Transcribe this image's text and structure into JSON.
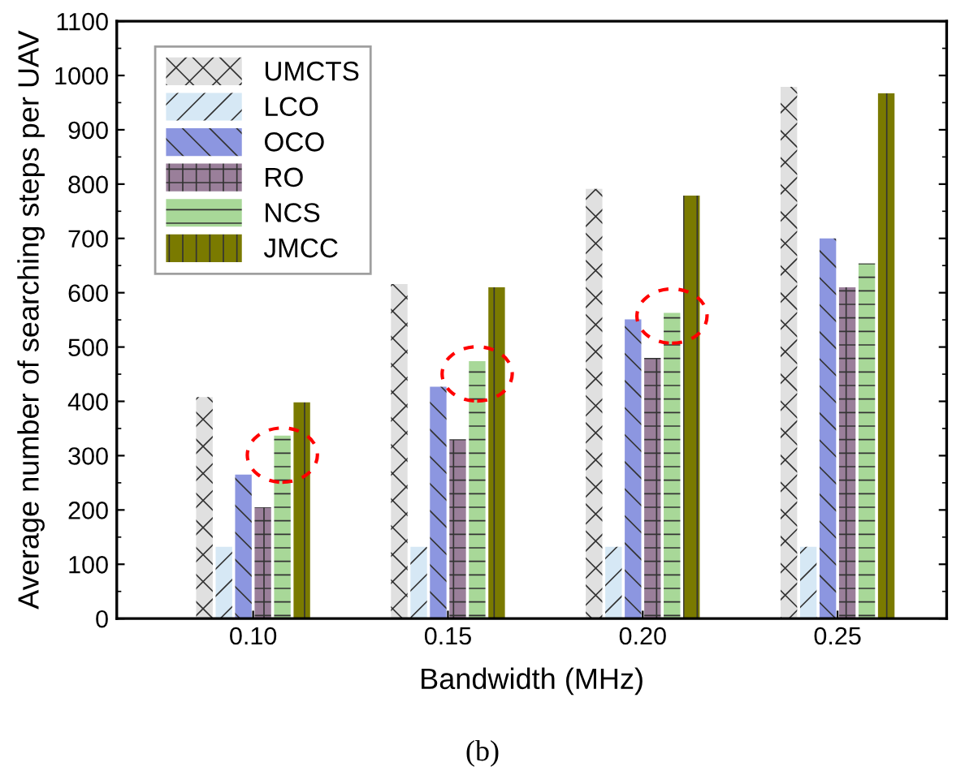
{
  "chart_data": {
    "type": "bar",
    "xlabel": "Bandwidth (MHz)",
    "ylabel": "Average number of searching steps per UAV",
    "categories": [
      "0.10",
      "0.15",
      "0.20",
      "0.25"
    ],
    "series": [
      {
        "name": "UMCTS",
        "color": "#e0e0e0",
        "values": [
          408,
          616,
          791,
          979
        ]
      },
      {
        "name": "LCO",
        "color": "#d6e8f5",
        "values": [
          132,
          132,
          132,
          132
        ]
      },
      {
        "name": "OCO",
        "color": "#8c96e0",
        "values": [
          265,
          427,
          551,
          700
        ]
      },
      {
        "name": "RO",
        "color": "#9a7f9a",
        "values": [
          205,
          330,
          480,
          610
        ]
      },
      {
        "name": "NCS",
        "color": "#a8d898",
        "values": [
          337,
          474,
          563,
          654
        ]
      },
      {
        "name": "JMCC",
        "color": "#7a7a00",
        "values": [
          398,
          610,
          779,
          967
        ]
      }
    ],
    "ylim": [
      0,
      1100
    ],
    "yticks": [
      0,
      100,
      200,
      300,
      400,
      500,
      600,
      700,
      800,
      900,
      1000,
      1100
    ],
    "grid": false,
    "legend": "top left",
    "annotations": [
      "(b)"
    ]
  }
}
